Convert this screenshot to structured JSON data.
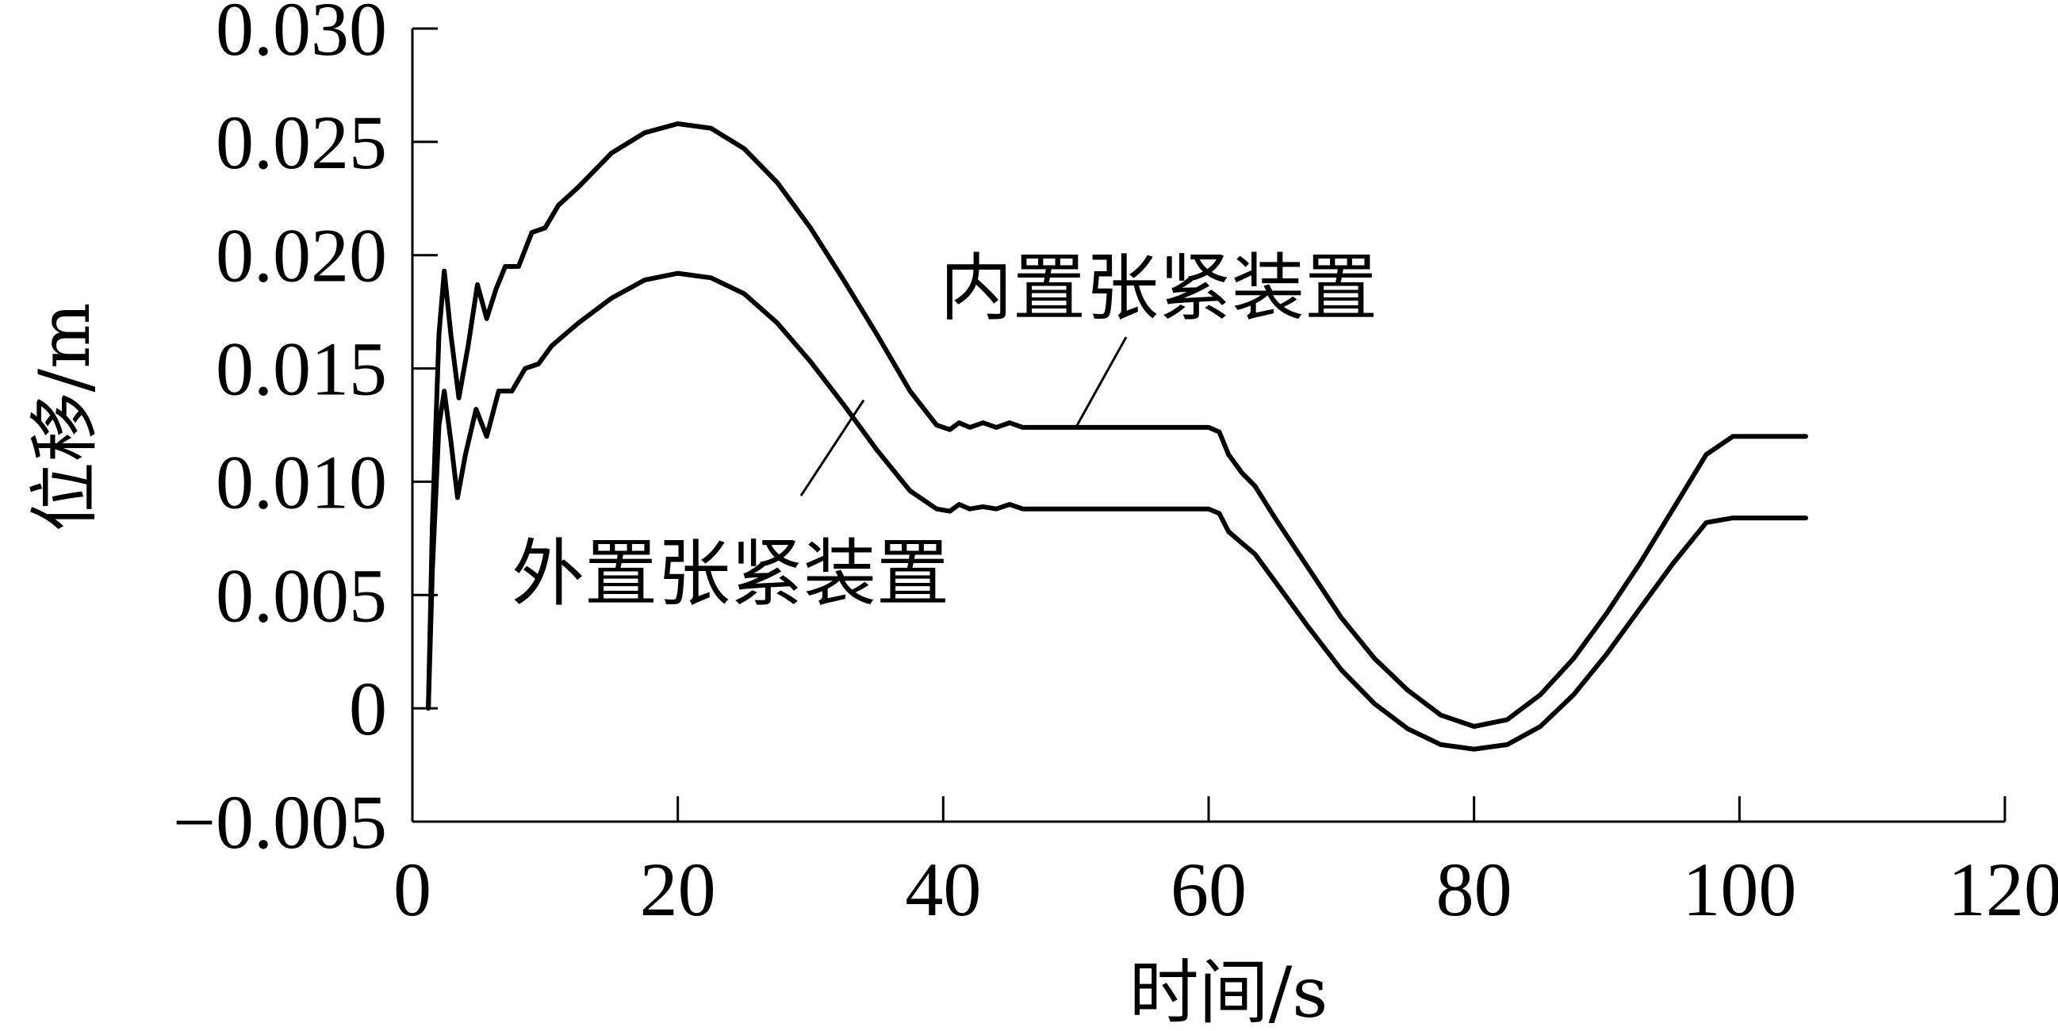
{
  "chart_data": {
    "type": "line",
    "xlabel": "时间/s",
    "ylabel": "位移/m",
    "xlim": [
      0,
      120
    ],
    "ylim": [
      -0.005,
      0.03
    ],
    "x_ticks": [
      "0",
      "20",
      "40",
      "60",
      "80",
      "100",
      "120"
    ],
    "y_ticks": [
      "−0.005",
      "0",
      "0.005",
      "0.010",
      "0.015",
      "0.020",
      "0.025",
      "0.030"
    ],
    "grid": false,
    "series": [
      {
        "name": "内置张紧装置",
        "color": "#000000",
        "points": [
          [
            1.2,
            0.0
          ],
          [
            1.5,
            0.008
          ],
          [
            2.0,
            0.0165
          ],
          [
            2.4,
            0.0193
          ],
          [
            2.9,
            0.0165
          ],
          [
            3.5,
            0.0137
          ],
          [
            4.2,
            0.016
          ],
          [
            4.9,
            0.0187
          ],
          [
            5.6,
            0.0172
          ],
          [
            6.3,
            0.0185
          ],
          [
            7.0,
            0.0195
          ],
          [
            8.0,
            0.0195
          ],
          [
            9.0,
            0.021
          ],
          [
            10.0,
            0.0212
          ],
          [
            11.0,
            0.0222
          ],
          [
            12.5,
            0.023
          ],
          [
            15.0,
            0.0245
          ],
          [
            17.5,
            0.0254
          ],
          [
            20.0,
            0.0258
          ],
          [
            22.5,
            0.0256
          ],
          [
            25.0,
            0.0247
          ],
          [
            27.5,
            0.0232
          ],
          [
            30.0,
            0.0212
          ],
          [
            32.5,
            0.0189
          ],
          [
            35.0,
            0.0165
          ],
          [
            37.5,
            0.014
          ],
          [
            39.5,
            0.0125
          ],
          [
            40.5,
            0.0123
          ],
          [
            41.2,
            0.0126
          ],
          [
            42.0,
            0.0124
          ],
          [
            43.0,
            0.0126
          ],
          [
            44.0,
            0.0124
          ],
          [
            45.0,
            0.0126
          ],
          [
            46.0,
            0.0124
          ],
          [
            50.0,
            0.0124
          ],
          [
            55.0,
            0.0124
          ],
          [
            60.0,
            0.0124
          ],
          [
            60.8,
            0.0122
          ],
          [
            61.5,
            0.0112
          ],
          [
            62.5,
            0.0104
          ],
          [
            63.5,
            0.0098
          ],
          [
            65.0,
            0.0084
          ],
          [
            67.5,
            0.0062
          ],
          [
            70.0,
            0.004
          ],
          [
            72.5,
            0.0022
          ],
          [
            75.0,
            0.0008
          ],
          [
            77.5,
            -0.0003
          ],
          [
            80.0,
            -0.0008
          ],
          [
            82.5,
            -0.0005
          ],
          [
            85.0,
            0.0006
          ],
          [
            87.5,
            0.0022
          ],
          [
            90.0,
            0.0042
          ],
          [
            92.5,
            0.0064
          ],
          [
            95.0,
            0.0088
          ],
          [
            97.5,
            0.0112
          ],
          [
            99.5,
            0.012
          ],
          [
            102.5,
            0.012
          ],
          [
            105.0,
            0.012
          ]
        ]
      },
      {
        "name": "外置张紧装置",
        "color": "#000000",
        "points": [
          [
            1.2,
            0.0
          ],
          [
            1.5,
            0.006
          ],
          [
            2.0,
            0.0125
          ],
          [
            2.4,
            0.014
          ],
          [
            2.9,
            0.0118
          ],
          [
            3.4,
            0.0093
          ],
          [
            4.0,
            0.0112
          ],
          [
            4.8,
            0.0132
          ],
          [
            5.6,
            0.012
          ],
          [
            6.5,
            0.014
          ],
          [
            7.5,
            0.014
          ],
          [
            8.5,
            0.015
          ],
          [
            9.5,
            0.0152
          ],
          [
            10.5,
            0.016
          ],
          [
            12.5,
            0.017
          ],
          [
            15.0,
            0.0181
          ],
          [
            17.5,
            0.0189
          ],
          [
            20.0,
            0.0192
          ],
          [
            22.5,
            0.019
          ],
          [
            25.0,
            0.0183
          ],
          [
            27.5,
            0.017
          ],
          [
            30.0,
            0.0153
          ],
          [
            32.5,
            0.0134
          ],
          [
            35.0,
            0.0114
          ],
          [
            37.5,
            0.0096
          ],
          [
            39.5,
            0.0088
          ],
          [
            40.5,
            0.0087
          ],
          [
            41.2,
            0.009
          ],
          [
            42.0,
            0.0088
          ],
          [
            43.0,
            0.0089
          ],
          [
            44.0,
            0.0088
          ],
          [
            45.0,
            0.009
          ],
          [
            46.0,
            0.0088
          ],
          [
            50.0,
            0.0088
          ],
          [
            55.0,
            0.0088
          ],
          [
            60.0,
            0.0088
          ],
          [
            60.8,
            0.0086
          ],
          [
            61.5,
            0.0078
          ],
          [
            62.5,
            0.0073
          ],
          [
            63.5,
            0.0068
          ],
          [
            65.0,
            0.0056
          ],
          [
            67.5,
            0.0036
          ],
          [
            70.0,
            0.0017
          ],
          [
            72.5,
            0.0002
          ],
          [
            75.0,
            -0.0009
          ],
          [
            77.5,
            -0.0016
          ],
          [
            80.0,
            -0.0018
          ],
          [
            82.5,
            -0.0016
          ],
          [
            85.0,
            -0.0008
          ],
          [
            87.5,
            0.0006
          ],
          [
            90.0,
            0.0024
          ],
          [
            92.5,
            0.0044
          ],
          [
            95.0,
            0.0064
          ],
          [
            97.5,
            0.0082
          ],
          [
            99.5,
            0.0084
          ],
          [
            102.5,
            0.0084
          ],
          [
            105.0,
            0.0084
          ]
        ]
      }
    ],
    "annotations": [
      {
        "text": "内置张紧装置",
        "series": "内置张紧装置",
        "point": [
          50.0,
          0.0124
        ]
      },
      {
        "text": "外置张紧装置",
        "series": "外置张紧装置",
        "point": [
          34.0,
          0.0136
        ]
      }
    ]
  }
}
